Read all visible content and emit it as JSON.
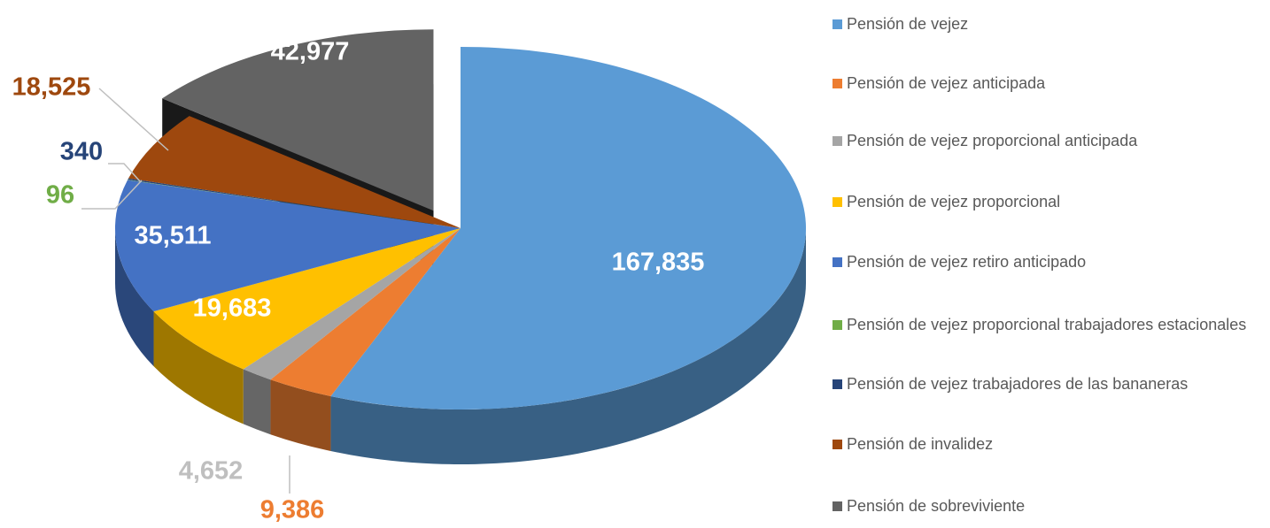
{
  "chart_data": {
    "type": "pie",
    "3d": true,
    "legend": "right",
    "exploded": [
      8
    ],
    "categories": [
      "Pensión de vejez",
      "Pensión de vejez anticipada",
      "Pensión de vejez proporcional anticipada",
      "Pensión de vejez proporcional",
      "Pensión de vejez retiro anticipado",
      "Pensión de vejez proporcional trabajadores estacionales",
      "Pensión de vejez trabajadores de las bananeras",
      "Pensión de invalidez",
      "Pensión de sobreviviente"
    ],
    "values": [
      167835,
      9386,
      4652,
      19683,
      35511,
      96,
      340,
      18525,
      42977
    ],
    "value_labels": [
      "167,835",
      "9,386",
      "4,652",
      "19,683",
      "35,511",
      "96",
      "340",
      "18,525",
      "42,977"
    ],
    "colors": [
      "#5b9bd5",
      "#ed7d31",
      "#a5a5a5",
      "#ffc000",
      "#4472c4",
      "#70ad47",
      "#264478",
      "#9e480e",
      "#636363"
    ]
  }
}
